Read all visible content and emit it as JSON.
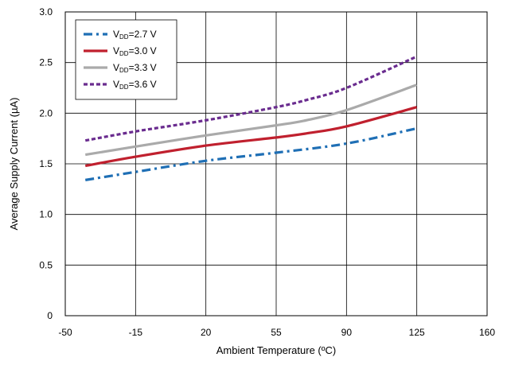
{
  "chart_data": {
    "type": "line",
    "title": "",
    "xlabel": "Ambient Temperature (ºC)",
    "ylabel": "Average Supply Current (µA)",
    "xlim": [
      -50,
      160
    ],
    "ylim": [
      0,
      3.0
    ],
    "xticks": [
      -50,
      -15,
      20,
      55,
      90,
      125,
      160
    ],
    "xtick_labels": [
      "-50",
      "-15",
      "20",
      "55",
      "90",
      "125",
      "160"
    ],
    "yticks": [
      0,
      0.5,
      1.0,
      1.5,
      2.0,
      2.5,
      3.0
    ],
    "ytick_labels": [
      "0",
      "0.5",
      "1.0",
      "1.5",
      "2.0",
      "2.5",
      "3.0"
    ],
    "grid": true,
    "legend_position": "top-left",
    "series": [
      {
        "name": "VDD=2.7 V",
        "label_main": "V",
        "label_sub": "DD",
        "label_rest": "=2.7 V",
        "color": "#1f6fb5",
        "dash": "dash-dot",
        "x": [
          -40,
          -15,
          20,
          55,
          90,
          125
        ],
        "y": [
          1.34,
          1.42,
          1.53,
          1.61,
          1.7,
          1.85
        ]
      },
      {
        "name": "VDD=3.0 V",
        "label_main": "V",
        "label_sub": "DD",
        "label_rest": "=3.0 V",
        "color": "#c0202e",
        "dash": "solid",
        "x": [
          -40,
          -15,
          20,
          55,
          70,
          90,
          125
        ],
        "y": [
          1.48,
          1.57,
          1.68,
          1.76,
          1.8,
          1.87,
          2.06
        ]
      },
      {
        "name": "VDD=3.3 V",
        "label_main": "V",
        "label_sub": "DD",
        "label_rest": "=3.3 V",
        "color": "#aaaaaa",
        "dash": "solid",
        "x": [
          -40,
          -15,
          20,
          55,
          70,
          90,
          125
        ],
        "y": [
          1.59,
          1.67,
          1.78,
          1.88,
          1.93,
          2.03,
          2.28
        ]
      },
      {
        "name": "VDD=3.6 V",
        "label_main": "V",
        "label_sub": "DD",
        "label_rest": "=3.6 V",
        "color": "#6a2c8f",
        "dash": "dotted",
        "x": [
          -40,
          -15,
          20,
          55,
          70,
          90,
          125
        ],
        "y": [
          1.73,
          1.82,
          1.93,
          2.06,
          2.13,
          2.25,
          2.56
        ]
      }
    ]
  }
}
